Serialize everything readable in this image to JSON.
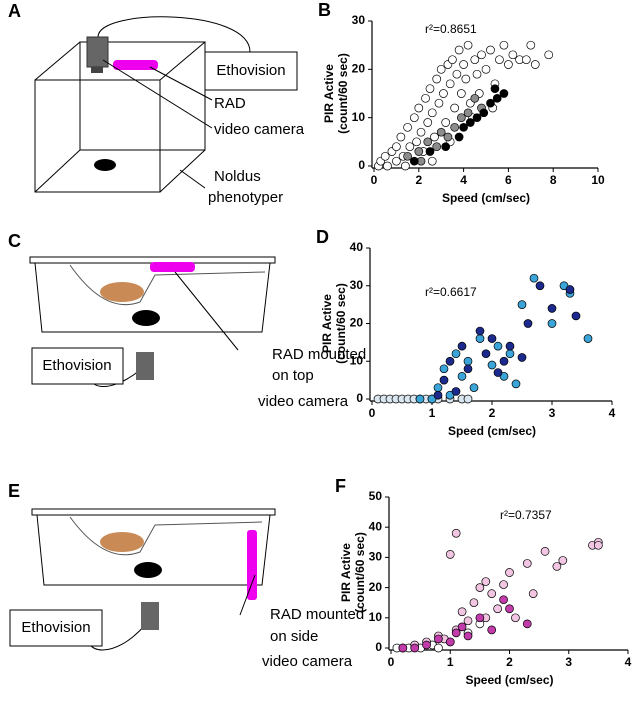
{
  "chart_data": [
    {
      "type": "scatter",
      "label": "B",
      "annotation": "r²=0.8651",
      "xlabel": "Speed (cm/sec)",
      "ylabel": [
        "PIR Active",
        "(count/60 sec)"
      ],
      "xlim": [
        0,
        10
      ],
      "ylim": [
        0,
        30
      ],
      "xticks": [
        0,
        2,
        4,
        6,
        8,
        10
      ],
      "yticks": [
        0,
        10,
        20,
        30
      ],
      "series": [
        {
          "color": "#ffffff",
          "x": [
            0.2,
            0.3,
            0.5,
            0.6,
            0.8,
            1.0,
            1.0,
            1.2,
            1.3,
            1.5,
            1.6,
            1.8,
            1.9,
            2.0,
            2.1,
            2.2,
            2.3,
            2.4,
            2.5,
            2.6,
            2.7,
            2.8,
            2.9,
            3.0,
            3.1,
            3.2,
            3.3,
            3.4,
            3.5,
            3.6,
            3.7,
            3.8,
            3.9,
            4.0,
            4.1,
            4.2,
            4.3,
            4.5,
            4.6,
            4.8,
            5.0,
            5.2,
            5.4,
            5.6,
            5.8,
            6.0,
            6.2,
            6.5,
            6.8,
            7.0,
            7.2,
            7.8,
            1.4,
            2.6,
            3.4,
            4.4,
            4.7,
            5.3
          ],
          "values": [
            0,
            1,
            2,
            0,
            3,
            4,
            1,
            6,
            2,
            8,
            4,
            10,
            5,
            12,
            7,
            3,
            14,
            9,
            16,
            11,
            6,
            18,
            13,
            20,
            15,
            9,
            21,
            17,
            22,
            12,
            19,
            24,
            15,
            21,
            18,
            25,
            13,
            22,
            19,
            23,
            20,
            24,
            17,
            22,
            25,
            21,
            23,
            22,
            22,
            25,
            21,
            23,
            0,
            1,
            5,
            10,
            15,
            12
          ]
        },
        {
          "color": "#8c8c8c",
          "x": [
            1.5,
            2.0,
            2.4,
            2.8,
            3.0,
            3.3,
            3.6,
            3.9,
            4.2,
            4.5,
            4.8,
            2.1
          ],
          "values": [
            2,
            3,
            5,
            4,
            7,
            6,
            8,
            10,
            11,
            14,
            12,
            1
          ]
        },
        {
          "color": "#000000",
          "x": [
            1.8,
            2.5,
            3.2,
            3.8,
            4.0,
            4.3,
            4.6,
            4.9,
            5.2,
            5.5,
            5.8,
            5.4
          ],
          "values": [
            1,
            3,
            4,
            6,
            8,
            9,
            10,
            11,
            13,
            14,
            15,
            16
          ]
        }
      ]
    },
    {
      "type": "scatter",
      "label": "D",
      "annotation": "r²=0.6617",
      "xlabel": "Speed (cm/sec)",
      "ylabel": [
        "PIR Active",
        "(count/60 sec)"
      ],
      "xlim": [
        0,
        4
      ],
      "ylim": [
        0,
        40
      ],
      "xticks": [
        0,
        1,
        2,
        3,
        4
      ],
      "yticks": [
        0,
        10,
        20,
        30,
        40
      ],
      "series": [
        {
          "color": "#dbe7f0",
          "x": [
            0.1,
            0.2,
            0.3,
            0.4,
            0.5,
            0.6,
            0.7,
            0.8,
            0.9,
            1.0,
            1.1,
            1.3,
            1.5,
            1.6
          ],
          "values": [
            0,
            0,
            0,
            0,
            0,
            0,
            0,
            0,
            0,
            0,
            0,
            0,
            0,
            0
          ]
        },
        {
          "color": "#3ba4d8",
          "x": [
            0.8,
            1.0,
            1.1,
            1.2,
            1.3,
            1.4,
            1.5,
            1.6,
            1.7,
            1.8,
            2.0,
            2.1,
            2.2,
            2.3,
            2.4,
            2.5,
            2.7,
            3.0,
            3.2,
            3.6,
            3.3
          ],
          "values": [
            0,
            0,
            3,
            8,
            1,
            12,
            6,
            10,
            3,
            16,
            9,
            14,
            6,
            12,
            4,
            25,
            32,
            20,
            30,
            16,
            28
          ]
        },
        {
          "color": "#1b2a8c",
          "x": [
            1.1,
            1.2,
            1.3,
            1.4,
            1.5,
            1.6,
            1.8,
            1.9,
            2.0,
            2.1,
            2.3,
            2.5,
            2.6,
            2.8,
            3.0,
            3.3,
            3.4,
            2.2
          ],
          "values": [
            1,
            5,
            10,
            2,
            14,
            8,
            18,
            12,
            16,
            7,
            14,
            11,
            20,
            30,
            24,
            29,
            22,
            10
          ]
        }
      ]
    },
    {
      "type": "scatter",
      "label": "F",
      "annotation": "r²=0.7357",
      "xlabel": "Speed (cm/sec)",
      "ylabel": [
        "PIR Active",
        "(count/60 sec)"
      ],
      "xlim": [
        0,
        4
      ],
      "ylim": [
        0,
        50
      ],
      "xticks": [
        0,
        1,
        2,
        3,
        4
      ],
      "yticks": [
        0,
        10,
        20,
        30,
        40,
        50
      ],
      "series": [
        {
          "color": "#ffffff",
          "x": [
            0.1,
            0.2,
            0.3,
            0.5,
            0.7,
            0.8,
            1.0,
            1.3,
            1.5
          ],
          "values": [
            0,
            0,
            0,
            0,
            1,
            0,
            2,
            5,
            8
          ]
        },
        {
          "color": "#f2c6e3",
          "x": [
            0.4,
            0.6,
            0.8,
            0.9,
            1.0,
            1.1,
            1.1,
            1.2,
            1.3,
            1.4,
            1.5,
            1.6,
            1.6,
            1.7,
            1.8,
            1.9,
            2.0,
            2.1,
            2.3,
            2.4,
            2.6,
            2.8,
            2.9,
            3.4,
            3.5,
            3.5
          ],
          "values": [
            1,
            2,
            4,
            3,
            31,
            38,
            6,
            12,
            9,
            15,
            20,
            22,
            10,
            18,
            13,
            21,
            25,
            10,
            28,
            18,
            32,
            27,
            29,
            34,
            35,
            34
          ]
        },
        {
          "color": "#c23bab",
          "x": [
            0.2,
            0.4,
            0.6,
            0.8,
            1.0,
            1.1,
            1.2,
            1.3,
            1.5,
            1.7,
            1.9,
            2.0,
            2.3
          ],
          "values": [
            0,
            0,
            1,
            3,
            2,
            5,
            7,
            4,
            10,
            6,
            16,
            13,
            8
          ]
        }
      ]
    }
  ],
  "diagrams": [
    {
      "label": "A",
      "texts": [
        "Ethovision",
        "RAD",
        "video camera",
        "Noldus",
        "phenotyper"
      ]
    },
    {
      "label": "C",
      "texts": [
        "Ethovision",
        "RAD mounted",
        "on top",
        "video camera"
      ]
    },
    {
      "label": "E",
      "texts": [
        "Ethovision",
        "RAD mounted",
        "on side",
        "video camera"
      ]
    }
  ]
}
